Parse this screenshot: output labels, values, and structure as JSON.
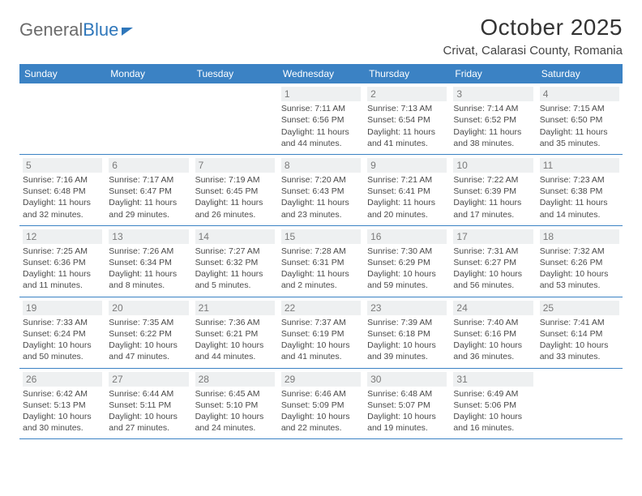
{
  "brand": {
    "part1": "General",
    "part2": "Blue"
  },
  "title": "October 2025",
  "location": "Crivat, Calarasi County, Romania",
  "colors": {
    "header_bg": "#3b82c4",
    "header_text": "#ffffff",
    "daynum_bg": "#eef0f1",
    "daynum_text": "#7a7a7a",
    "body_text": "#4a4a4a",
    "rule": "#3b82c4"
  },
  "typography": {
    "title_fontsize": 28,
    "location_fontsize": 15,
    "dow_fontsize": 12,
    "daynum_fontsize": 12,
    "body_fontsize": 10.5
  },
  "days_of_week": [
    "Sunday",
    "Monday",
    "Tuesday",
    "Wednesday",
    "Thursday",
    "Friday",
    "Saturday"
  ],
  "weeks": [
    [
      {
        "n": "",
        "sunrise": "",
        "sunset": "",
        "daylight": ""
      },
      {
        "n": "",
        "sunrise": "",
        "sunset": "",
        "daylight": ""
      },
      {
        "n": "",
        "sunrise": "",
        "sunset": "",
        "daylight": ""
      },
      {
        "n": "1",
        "sunrise": "Sunrise: 7:11 AM",
        "sunset": "Sunset: 6:56 PM",
        "daylight": "Daylight: 11 hours and 44 minutes."
      },
      {
        "n": "2",
        "sunrise": "Sunrise: 7:13 AM",
        "sunset": "Sunset: 6:54 PM",
        "daylight": "Daylight: 11 hours and 41 minutes."
      },
      {
        "n": "3",
        "sunrise": "Sunrise: 7:14 AM",
        "sunset": "Sunset: 6:52 PM",
        "daylight": "Daylight: 11 hours and 38 minutes."
      },
      {
        "n": "4",
        "sunrise": "Sunrise: 7:15 AM",
        "sunset": "Sunset: 6:50 PM",
        "daylight": "Daylight: 11 hours and 35 minutes."
      }
    ],
    [
      {
        "n": "5",
        "sunrise": "Sunrise: 7:16 AM",
        "sunset": "Sunset: 6:48 PM",
        "daylight": "Daylight: 11 hours and 32 minutes."
      },
      {
        "n": "6",
        "sunrise": "Sunrise: 7:17 AM",
        "sunset": "Sunset: 6:47 PM",
        "daylight": "Daylight: 11 hours and 29 minutes."
      },
      {
        "n": "7",
        "sunrise": "Sunrise: 7:19 AM",
        "sunset": "Sunset: 6:45 PM",
        "daylight": "Daylight: 11 hours and 26 minutes."
      },
      {
        "n": "8",
        "sunrise": "Sunrise: 7:20 AM",
        "sunset": "Sunset: 6:43 PM",
        "daylight": "Daylight: 11 hours and 23 minutes."
      },
      {
        "n": "9",
        "sunrise": "Sunrise: 7:21 AM",
        "sunset": "Sunset: 6:41 PM",
        "daylight": "Daylight: 11 hours and 20 minutes."
      },
      {
        "n": "10",
        "sunrise": "Sunrise: 7:22 AM",
        "sunset": "Sunset: 6:39 PM",
        "daylight": "Daylight: 11 hours and 17 minutes."
      },
      {
        "n": "11",
        "sunrise": "Sunrise: 7:23 AM",
        "sunset": "Sunset: 6:38 PM",
        "daylight": "Daylight: 11 hours and 14 minutes."
      }
    ],
    [
      {
        "n": "12",
        "sunrise": "Sunrise: 7:25 AM",
        "sunset": "Sunset: 6:36 PM",
        "daylight": "Daylight: 11 hours and 11 minutes."
      },
      {
        "n": "13",
        "sunrise": "Sunrise: 7:26 AM",
        "sunset": "Sunset: 6:34 PM",
        "daylight": "Daylight: 11 hours and 8 minutes."
      },
      {
        "n": "14",
        "sunrise": "Sunrise: 7:27 AM",
        "sunset": "Sunset: 6:32 PM",
        "daylight": "Daylight: 11 hours and 5 minutes."
      },
      {
        "n": "15",
        "sunrise": "Sunrise: 7:28 AM",
        "sunset": "Sunset: 6:31 PM",
        "daylight": "Daylight: 11 hours and 2 minutes."
      },
      {
        "n": "16",
        "sunrise": "Sunrise: 7:30 AM",
        "sunset": "Sunset: 6:29 PM",
        "daylight": "Daylight: 10 hours and 59 minutes."
      },
      {
        "n": "17",
        "sunrise": "Sunrise: 7:31 AM",
        "sunset": "Sunset: 6:27 PM",
        "daylight": "Daylight: 10 hours and 56 minutes."
      },
      {
        "n": "18",
        "sunrise": "Sunrise: 7:32 AM",
        "sunset": "Sunset: 6:26 PM",
        "daylight": "Daylight: 10 hours and 53 minutes."
      }
    ],
    [
      {
        "n": "19",
        "sunrise": "Sunrise: 7:33 AM",
        "sunset": "Sunset: 6:24 PM",
        "daylight": "Daylight: 10 hours and 50 minutes."
      },
      {
        "n": "20",
        "sunrise": "Sunrise: 7:35 AM",
        "sunset": "Sunset: 6:22 PM",
        "daylight": "Daylight: 10 hours and 47 minutes."
      },
      {
        "n": "21",
        "sunrise": "Sunrise: 7:36 AM",
        "sunset": "Sunset: 6:21 PM",
        "daylight": "Daylight: 10 hours and 44 minutes."
      },
      {
        "n": "22",
        "sunrise": "Sunrise: 7:37 AM",
        "sunset": "Sunset: 6:19 PM",
        "daylight": "Daylight: 10 hours and 41 minutes."
      },
      {
        "n": "23",
        "sunrise": "Sunrise: 7:39 AM",
        "sunset": "Sunset: 6:18 PM",
        "daylight": "Daylight: 10 hours and 39 minutes."
      },
      {
        "n": "24",
        "sunrise": "Sunrise: 7:40 AM",
        "sunset": "Sunset: 6:16 PM",
        "daylight": "Daylight: 10 hours and 36 minutes."
      },
      {
        "n": "25",
        "sunrise": "Sunrise: 7:41 AM",
        "sunset": "Sunset: 6:14 PM",
        "daylight": "Daylight: 10 hours and 33 minutes."
      }
    ],
    [
      {
        "n": "26",
        "sunrise": "Sunrise: 6:42 AM",
        "sunset": "Sunset: 5:13 PM",
        "daylight": "Daylight: 10 hours and 30 minutes."
      },
      {
        "n": "27",
        "sunrise": "Sunrise: 6:44 AM",
        "sunset": "Sunset: 5:11 PM",
        "daylight": "Daylight: 10 hours and 27 minutes."
      },
      {
        "n": "28",
        "sunrise": "Sunrise: 6:45 AM",
        "sunset": "Sunset: 5:10 PM",
        "daylight": "Daylight: 10 hours and 24 minutes."
      },
      {
        "n": "29",
        "sunrise": "Sunrise: 6:46 AM",
        "sunset": "Sunset: 5:09 PM",
        "daylight": "Daylight: 10 hours and 22 minutes."
      },
      {
        "n": "30",
        "sunrise": "Sunrise: 6:48 AM",
        "sunset": "Sunset: 5:07 PM",
        "daylight": "Daylight: 10 hours and 19 minutes."
      },
      {
        "n": "31",
        "sunrise": "Sunrise: 6:49 AM",
        "sunset": "Sunset: 5:06 PM",
        "daylight": "Daylight: 10 hours and 16 minutes."
      },
      {
        "n": "",
        "sunrise": "",
        "sunset": "",
        "daylight": ""
      }
    ]
  ]
}
